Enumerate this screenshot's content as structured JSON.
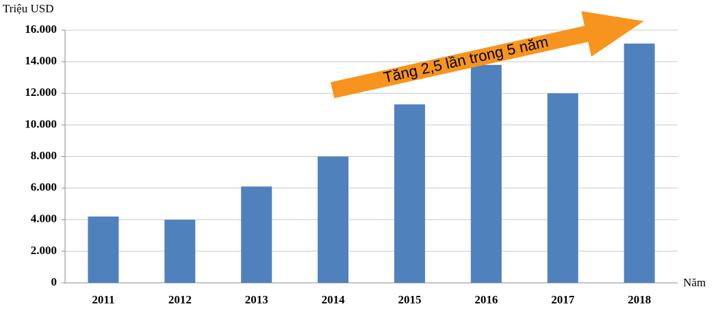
{
  "chart_data": {
    "type": "bar",
    "y_label": "Triệu USD",
    "x_label": "Năm",
    "annotation": "Tăng 2,5 lần trong 5 năm",
    "categories": [
      "2011",
      "2012",
      "2013",
      "2014",
      "2015",
      "2016",
      "2017",
      "2018"
    ],
    "values": [
      4200,
      4000,
      6100,
      8000,
      11300,
      13800,
      12000,
      15150
    ],
    "color": "#4f81bd",
    "ylim": [
      0,
      16000
    ],
    "yticks": [
      0,
      {
        "value": 2000,
        "label": "2.000"
      },
      {
        "value": 4000,
        "label": "4.000"
      },
      {
        "value": 6000,
        "label": "6.000"
      },
      {
        "value": 8000,
        "label": "8.000"
      },
      {
        "value": 10000,
        "label": "10.000"
      },
      {
        "value": 12000,
        "label": "12.000"
      },
      {
        "value": 14000,
        "label": "14.000"
      },
      {
        "value": 16000,
        "label": "16.000"
      }
    ],
    "grid": true
  }
}
